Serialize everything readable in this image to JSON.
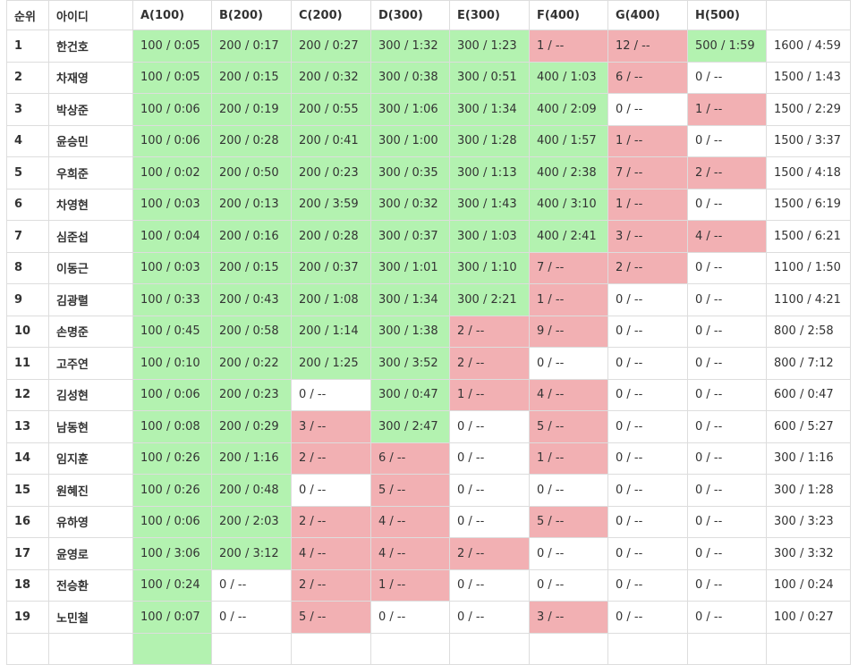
{
  "columns": [
    "순위",
    "아이디",
    "A(100)",
    "B(200)",
    "C(200)",
    "D(300)",
    "E(300)",
    "F(400)",
    "G(400)",
    "H(500)",
    ""
  ],
  "status_colors": {
    "solved": "#b3f2b0",
    "failed": "#f2b0b3",
    "none": "#ffffff"
  },
  "rows": [
    {
      "rank": "1",
      "id": "한건호",
      "cells": [
        [
          "100 / 0:05",
          "solved"
        ],
        [
          "200 / 0:17",
          "solved"
        ],
        [
          "200 / 0:27",
          "solved"
        ],
        [
          "300 / 1:32",
          "solved"
        ],
        [
          "300 / 1:23",
          "solved"
        ],
        [
          "1 / --",
          "failed"
        ],
        [
          "12 / --",
          "failed"
        ],
        [
          "500 / 1:59",
          "solved"
        ]
      ],
      "total": "1600 / 4:59"
    },
    {
      "rank": "2",
      "id": "차재영",
      "cells": [
        [
          "100 / 0:05",
          "solved"
        ],
        [
          "200 / 0:15",
          "solved"
        ],
        [
          "200 / 0:32",
          "solved"
        ],
        [
          "300 / 0:38",
          "solved"
        ],
        [
          "300 / 0:51",
          "solved"
        ],
        [
          "400 / 1:03",
          "solved"
        ],
        [
          "6 / --",
          "failed"
        ],
        [
          "0 / --",
          "none"
        ]
      ],
      "total": "1500 / 1:43"
    },
    {
      "rank": "3",
      "id": "박상준",
      "cells": [
        [
          "100 / 0:06",
          "solved"
        ],
        [
          "200 / 0:19",
          "solved"
        ],
        [
          "200 / 0:55",
          "solved"
        ],
        [
          "300 / 1:06",
          "solved"
        ],
        [
          "300 / 1:34",
          "solved"
        ],
        [
          "400 / 2:09",
          "solved"
        ],
        [
          "0 / --",
          "none"
        ],
        [
          "1 / --",
          "failed"
        ]
      ],
      "total": "1500 / 2:29"
    },
    {
      "rank": "4",
      "id": "윤승민",
      "cells": [
        [
          "100 / 0:06",
          "solved"
        ],
        [
          "200 / 0:28",
          "solved"
        ],
        [
          "200 / 0:41",
          "solved"
        ],
        [
          "300 / 1:00",
          "solved"
        ],
        [
          "300 / 1:28",
          "solved"
        ],
        [
          "400 / 1:57",
          "solved"
        ],
        [
          "1 / --",
          "failed"
        ],
        [
          "0 / --",
          "none"
        ]
      ],
      "total": "1500 / 3:37"
    },
    {
      "rank": "5",
      "id": "우희준",
      "cells": [
        [
          "100 / 0:02",
          "solved"
        ],
        [
          "200 / 0:50",
          "solved"
        ],
        [
          "200 / 0:23",
          "solved"
        ],
        [
          "300 / 0:35",
          "solved"
        ],
        [
          "300 / 1:13",
          "solved"
        ],
        [
          "400 / 2:38",
          "solved"
        ],
        [
          "7 / --",
          "failed"
        ],
        [
          "2 / --",
          "failed"
        ]
      ],
      "total": "1500 / 4:18"
    },
    {
      "rank": "6",
      "id": "차영현",
      "cells": [
        [
          "100 / 0:03",
          "solved"
        ],
        [
          "200 / 0:13",
          "solved"
        ],
        [
          "200 / 3:59",
          "solved"
        ],
        [
          "300 / 0:32",
          "solved"
        ],
        [
          "300 / 1:43",
          "solved"
        ],
        [
          "400 / 3:10",
          "solved"
        ],
        [
          "1 / --",
          "failed"
        ],
        [
          "0 / --",
          "none"
        ]
      ],
      "total": "1500 / 6:19"
    },
    {
      "rank": "7",
      "id": "심준섭",
      "cells": [
        [
          "100 / 0:04",
          "solved"
        ],
        [
          "200 / 0:16",
          "solved"
        ],
        [
          "200 / 0:28",
          "solved"
        ],
        [
          "300 / 0:37",
          "solved"
        ],
        [
          "300 / 1:03",
          "solved"
        ],
        [
          "400 / 2:41",
          "solved"
        ],
        [
          "3 / --",
          "failed"
        ],
        [
          "4 / --",
          "failed"
        ]
      ],
      "total": "1500 / 6:21"
    },
    {
      "rank": "8",
      "id": "이동근",
      "cells": [
        [
          "100 / 0:03",
          "solved"
        ],
        [
          "200 / 0:15",
          "solved"
        ],
        [
          "200 / 0:37",
          "solved"
        ],
        [
          "300 / 1:01",
          "solved"
        ],
        [
          "300 / 1:10",
          "solved"
        ],
        [
          "7 / --",
          "failed"
        ],
        [
          "2 / --",
          "failed"
        ],
        [
          "0 / --",
          "none"
        ]
      ],
      "total": "1100 / 1:50"
    },
    {
      "rank": "9",
      "id": "김광렬",
      "cells": [
        [
          "100 / 0:33",
          "solved"
        ],
        [
          "200 / 0:43",
          "solved"
        ],
        [
          "200 / 1:08",
          "solved"
        ],
        [
          "300 / 1:34",
          "solved"
        ],
        [
          "300 / 2:21",
          "solved"
        ],
        [
          "1 / --",
          "failed"
        ],
        [
          "0 / --",
          "none"
        ],
        [
          "0 / --",
          "none"
        ]
      ],
      "total": "1100 / 4:21"
    },
    {
      "rank": "10",
      "id": "손명준",
      "cells": [
        [
          "100 / 0:45",
          "solved"
        ],
        [
          "200 / 0:58",
          "solved"
        ],
        [
          "200 / 1:14",
          "solved"
        ],
        [
          "300 / 1:38",
          "solved"
        ],
        [
          "2 / --",
          "failed"
        ],
        [
          "9 / --",
          "failed"
        ],
        [
          "0 / --",
          "none"
        ],
        [
          "0 / --",
          "none"
        ]
      ],
      "total": "800 / 2:58"
    },
    {
      "rank": "11",
      "id": "고주연",
      "cells": [
        [
          "100 / 0:10",
          "solved"
        ],
        [
          "200 / 0:22",
          "solved"
        ],
        [
          "200 / 1:25",
          "solved"
        ],
        [
          "300 / 3:52",
          "solved"
        ],
        [
          "2 / --",
          "failed"
        ],
        [
          "0 / --",
          "none"
        ],
        [
          "0 / --",
          "none"
        ],
        [
          "0 / --",
          "none"
        ]
      ],
      "total": "800 / 7:12"
    },
    {
      "rank": "12",
      "id": "김성현",
      "cells": [
        [
          "100 / 0:06",
          "solved"
        ],
        [
          "200 / 0:23",
          "solved"
        ],
        [
          "0 / --",
          "none"
        ],
        [
          "300 / 0:47",
          "solved"
        ],
        [
          "1 / --",
          "failed"
        ],
        [
          "4 / --",
          "failed"
        ],
        [
          "0 / --",
          "none"
        ],
        [
          "0 / --",
          "none"
        ]
      ],
      "total": "600 / 0:47"
    },
    {
      "rank": "13",
      "id": "남동현",
      "cells": [
        [
          "100 / 0:08",
          "solved"
        ],
        [
          "200 / 0:29",
          "solved"
        ],
        [
          "3 / --",
          "failed"
        ],
        [
          "300 / 2:47",
          "solved"
        ],
        [
          "0 / --",
          "none"
        ],
        [
          "5 / --",
          "failed"
        ],
        [
          "0 / --",
          "none"
        ],
        [
          "0 / --",
          "none"
        ]
      ],
      "total": "600 / 5:27"
    },
    {
      "rank": "14",
      "id": "임지훈",
      "cells": [
        [
          "100 / 0:26",
          "solved"
        ],
        [
          "200 / 1:16",
          "solved"
        ],
        [
          "2 / --",
          "failed"
        ],
        [
          "6 / --",
          "failed"
        ],
        [
          "0 / --",
          "none"
        ],
        [
          "1 / --",
          "failed"
        ],
        [
          "0 / --",
          "none"
        ],
        [
          "0 / --",
          "none"
        ]
      ],
      "total": "300 / 1:16"
    },
    {
      "rank": "15",
      "id": "원혜진",
      "cells": [
        [
          "100 / 0:26",
          "solved"
        ],
        [
          "200 / 0:48",
          "solved"
        ],
        [
          "0 / --",
          "none"
        ],
        [
          "5 / --",
          "failed"
        ],
        [
          "0 / --",
          "none"
        ],
        [
          "0 / --",
          "none"
        ],
        [
          "0 / --",
          "none"
        ],
        [
          "0 / --",
          "none"
        ]
      ],
      "total": "300 / 1:28"
    },
    {
      "rank": "16",
      "id": "유하영",
      "cells": [
        [
          "100 / 0:06",
          "solved"
        ],
        [
          "200 / 2:03",
          "solved"
        ],
        [
          "2 / --",
          "failed"
        ],
        [
          "4 / --",
          "failed"
        ],
        [
          "0 / --",
          "none"
        ],
        [
          "5 / --",
          "failed"
        ],
        [
          "0 / --",
          "none"
        ],
        [
          "0 / --",
          "none"
        ]
      ],
      "total": "300 / 3:23"
    },
    {
      "rank": "17",
      "id": "윤영로",
      "cells": [
        [
          "100 / 3:06",
          "solved"
        ],
        [
          "200 / 3:12",
          "solved"
        ],
        [
          "4 / --",
          "failed"
        ],
        [
          "4 / --",
          "failed"
        ],
        [
          "2 / --",
          "failed"
        ],
        [
          "0 / --",
          "none"
        ],
        [
          "0 / --",
          "none"
        ],
        [
          "0 / --",
          "none"
        ]
      ],
      "total": "300 / 3:32"
    },
    {
      "rank": "18",
      "id": "전승환",
      "cells": [
        [
          "100 / 0:24",
          "solved"
        ],
        [
          "0 / --",
          "none"
        ],
        [
          "2 / --",
          "failed"
        ],
        [
          "1 / --",
          "failed"
        ],
        [
          "0 / --",
          "none"
        ],
        [
          "0 / --",
          "none"
        ],
        [
          "0 / --",
          "none"
        ],
        [
          "0 / --",
          "none"
        ]
      ],
      "total": "100 / 0:24"
    },
    {
      "rank": "19",
      "id": "노민철",
      "cells": [
        [
          "100 / 0:07",
          "solved"
        ],
        [
          "0 / --",
          "none"
        ],
        [
          "5 / --",
          "failed"
        ],
        [
          "0 / --",
          "none"
        ],
        [
          "0 / --",
          "none"
        ],
        [
          "3 / --",
          "failed"
        ],
        [
          "0 / --",
          "none"
        ],
        [
          "0 / --",
          "none"
        ]
      ],
      "total": "100 / 0:27"
    },
    {
      "rank": "",
      "id": "",
      "cells": [
        [
          "",
          "solved"
        ],
        [
          "",
          "none"
        ],
        [
          "",
          "none"
        ],
        [
          "",
          "none"
        ],
        [
          "",
          "none"
        ],
        [
          "",
          "none"
        ],
        [
          "",
          "none"
        ],
        [
          "",
          "none"
        ]
      ],
      "total": ""
    }
  ]
}
